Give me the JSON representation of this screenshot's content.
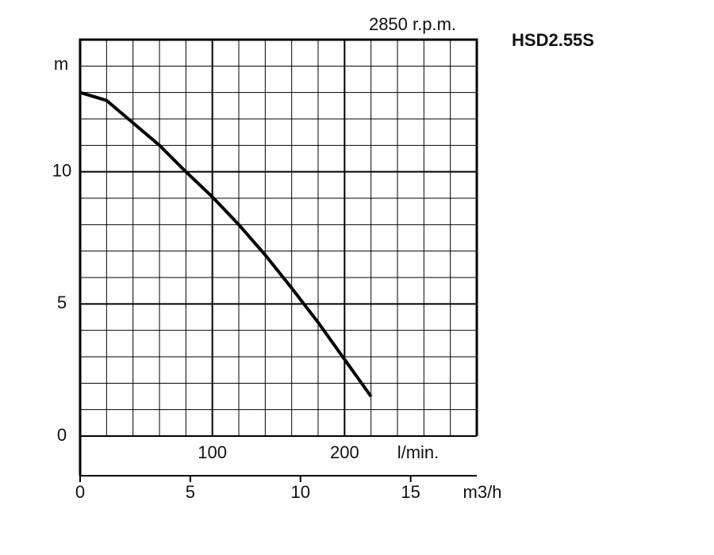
{
  "chart_data": {
    "type": "line",
    "title": "HSD2.55S",
    "subtitle": "2850 r.p.m.",
    "y_label": "m",
    "x_label": "l/min.",
    "x2_label": "m3/h",
    "x": [
      0,
      20,
      40,
      60,
      80,
      100,
      120,
      140,
      160,
      180,
      200,
      220
    ],
    "series": [
      {
        "color": "#000000",
        "values": [
          13,
          12.7,
          11.85,
          11,
          10,
          9.05,
          8,
          6.85,
          5.6,
          4.3,
          2.9,
          1.5
        ]
      }
    ],
    "xlim": [
      0,
      300
    ],
    "xticks": [
      100,
      200
    ],
    "ylim": [
      0,
      15
    ],
    "yticks": [
      0,
      5,
      10
    ],
    "x2lim": [
      0,
      18
    ],
    "x2ticks": [
      0,
      5,
      10,
      15
    ],
    "xgrid": [
      20,
      40,
      60,
      80,
      120,
      140,
      160,
      180,
      220,
      240,
      260,
      280
    ],
    "ygrid": [
      1,
      2,
      3,
      4,
      6,
      7,
      8,
      9,
      11,
      12,
      13,
      14
    ],
    "grid": true
  }
}
